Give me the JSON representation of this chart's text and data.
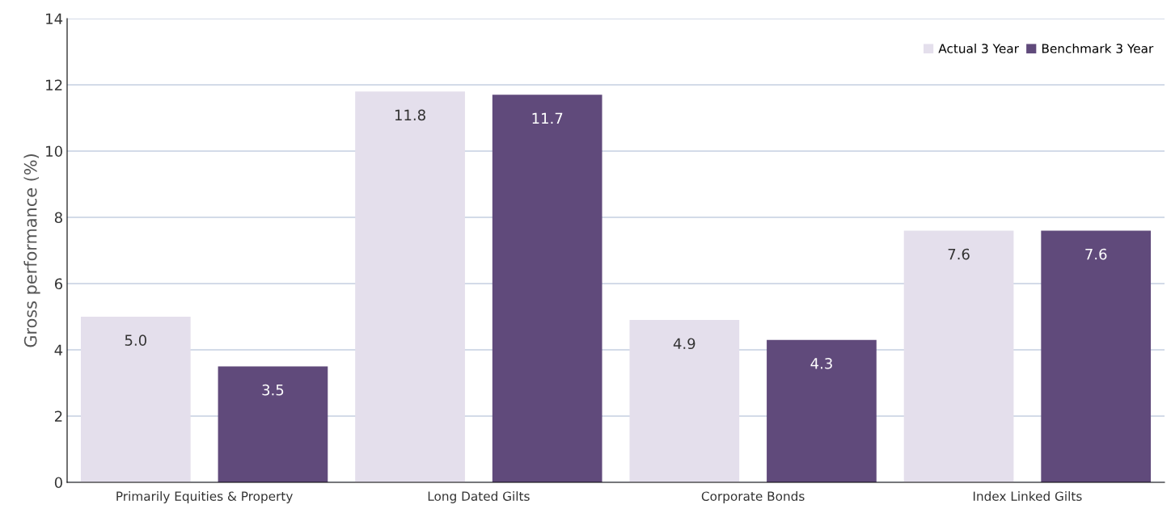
{
  "chart_data": {
    "type": "bar",
    "ylabel": "Gross performance (%)",
    "categories": [
      "Primarily Equities & Property",
      "Long Dated Gilts",
      "Corporate Bonds",
      "Index Linked Gilts"
    ],
    "series": [
      {
        "name": "Actual 3 Year",
        "color": "#e4dfec",
        "values": [
          5.0,
          11.8,
          4.9,
          7.6
        ],
        "value_labels": [
          "5.0",
          "11.8",
          "4.9",
          "7.6"
        ]
      },
      {
        "name": "Benchmark 3 Year",
        "color": "#604a7b",
        "values": [
          3.5,
          11.7,
          4.3,
          7.6
        ],
        "value_labels": [
          "3.5",
          "11.7",
          "4.3",
          "7.6"
        ]
      }
    ],
    "ylim": [
      0,
      14
    ],
    "yticks": [
      0,
      2,
      4,
      6,
      8,
      10,
      12,
      14
    ],
    "grid": "y",
    "legend": "top right"
  }
}
